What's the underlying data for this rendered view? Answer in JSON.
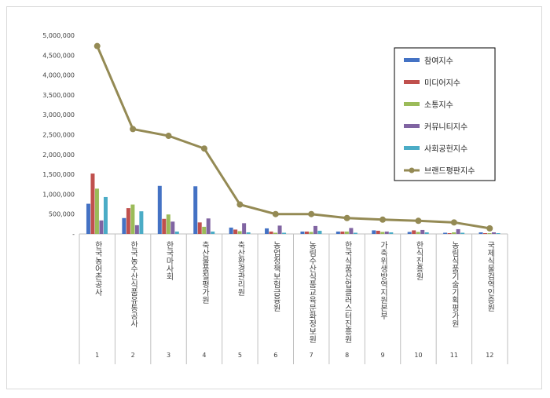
{
  "chart_data": {
    "type": "bar",
    "title": "",
    "xlabel": "",
    "ylabel": "",
    "ylim": [
      0,
      5000000
    ],
    "yticks": [
      {
        "value": 0,
        "label": "-"
      },
      {
        "value": 500000,
        "label": "500,000"
      },
      {
        "value": 1000000,
        "label": "1,000,000"
      },
      {
        "value": 1500000,
        "label": "1,500,000"
      },
      {
        "value": 2000000,
        "label": "2,000,000"
      },
      {
        "value": 2500000,
        "label": "2,500,000"
      },
      {
        "value": 3000000,
        "label": "3,000,000"
      },
      {
        "value": 3500000,
        "label": "3,500,000"
      },
      {
        "value": 4000000,
        "label": "4,000,000"
      },
      {
        "value": 4500000,
        "label": "4,500,000"
      },
      {
        "value": 5000000,
        "label": "5,000,000"
      }
    ],
    "grid": false,
    "legend_position": "top-right",
    "categories": [
      "한국농어촌공사",
      "한국농수산식품유통공사",
      "한국마사회",
      "축산물품질평가원",
      "축산환경관리원",
      "농업정책보험금융원",
      "농림수산식품교육문화정보원",
      "한국식품산업클러스터진흥원",
      "가축위생방역지원본부",
      "한식진흥원",
      "농림식품기술기획평가원",
      "국제식물검역인증원"
    ],
    "index_labels": [
      "1",
      "2",
      "3",
      "4",
      "5",
      "6",
      "7",
      "8",
      "9",
      "10",
      "11",
      "12"
    ],
    "series": [
      {
        "name": "참여지수",
        "type": "bar",
        "color": "#4472c4",
        "values": [
          760000,
          400000,
          1210000,
          1200000,
          160000,
          140000,
          60000,
          60000,
          90000,
          50000,
          30000,
          40000
        ]
      },
      {
        "name": "미디어지수",
        "type": "bar",
        "color": "#c0504d",
        "values": [
          1520000,
          650000,
          380000,
          290000,
          110000,
          60000,
          60000,
          60000,
          80000,
          90000,
          20000,
          20000
        ]
      },
      {
        "name": "소통지수",
        "type": "bar",
        "color": "#9bbb59",
        "values": [
          1140000,
          740000,
          490000,
          180000,
          70000,
          30000,
          50000,
          60000,
          50000,
          50000,
          40000,
          20000
        ]
      },
      {
        "name": "커뮤니티지수",
        "type": "bar",
        "color": "#8064a2",
        "values": [
          340000,
          220000,
          310000,
          390000,
          270000,
          210000,
          200000,
          150000,
          60000,
          100000,
          120000,
          40000
        ]
      },
      {
        "name": "사회공헌지수",
        "type": "bar",
        "color": "#4bacc6",
        "values": [
          930000,
          570000,
          60000,
          60000,
          40000,
          30000,
          80000,
          30000,
          40000,
          40000,
          30000,
          20000
        ]
      },
      {
        "name": "브랜드평판지수",
        "type": "line",
        "color": "#948a54",
        "values": [
          4730000,
          2640000,
          2470000,
          2150000,
          740000,
          500000,
          500000,
          400000,
          360000,
          330000,
          290000,
          140000
        ]
      }
    ]
  }
}
